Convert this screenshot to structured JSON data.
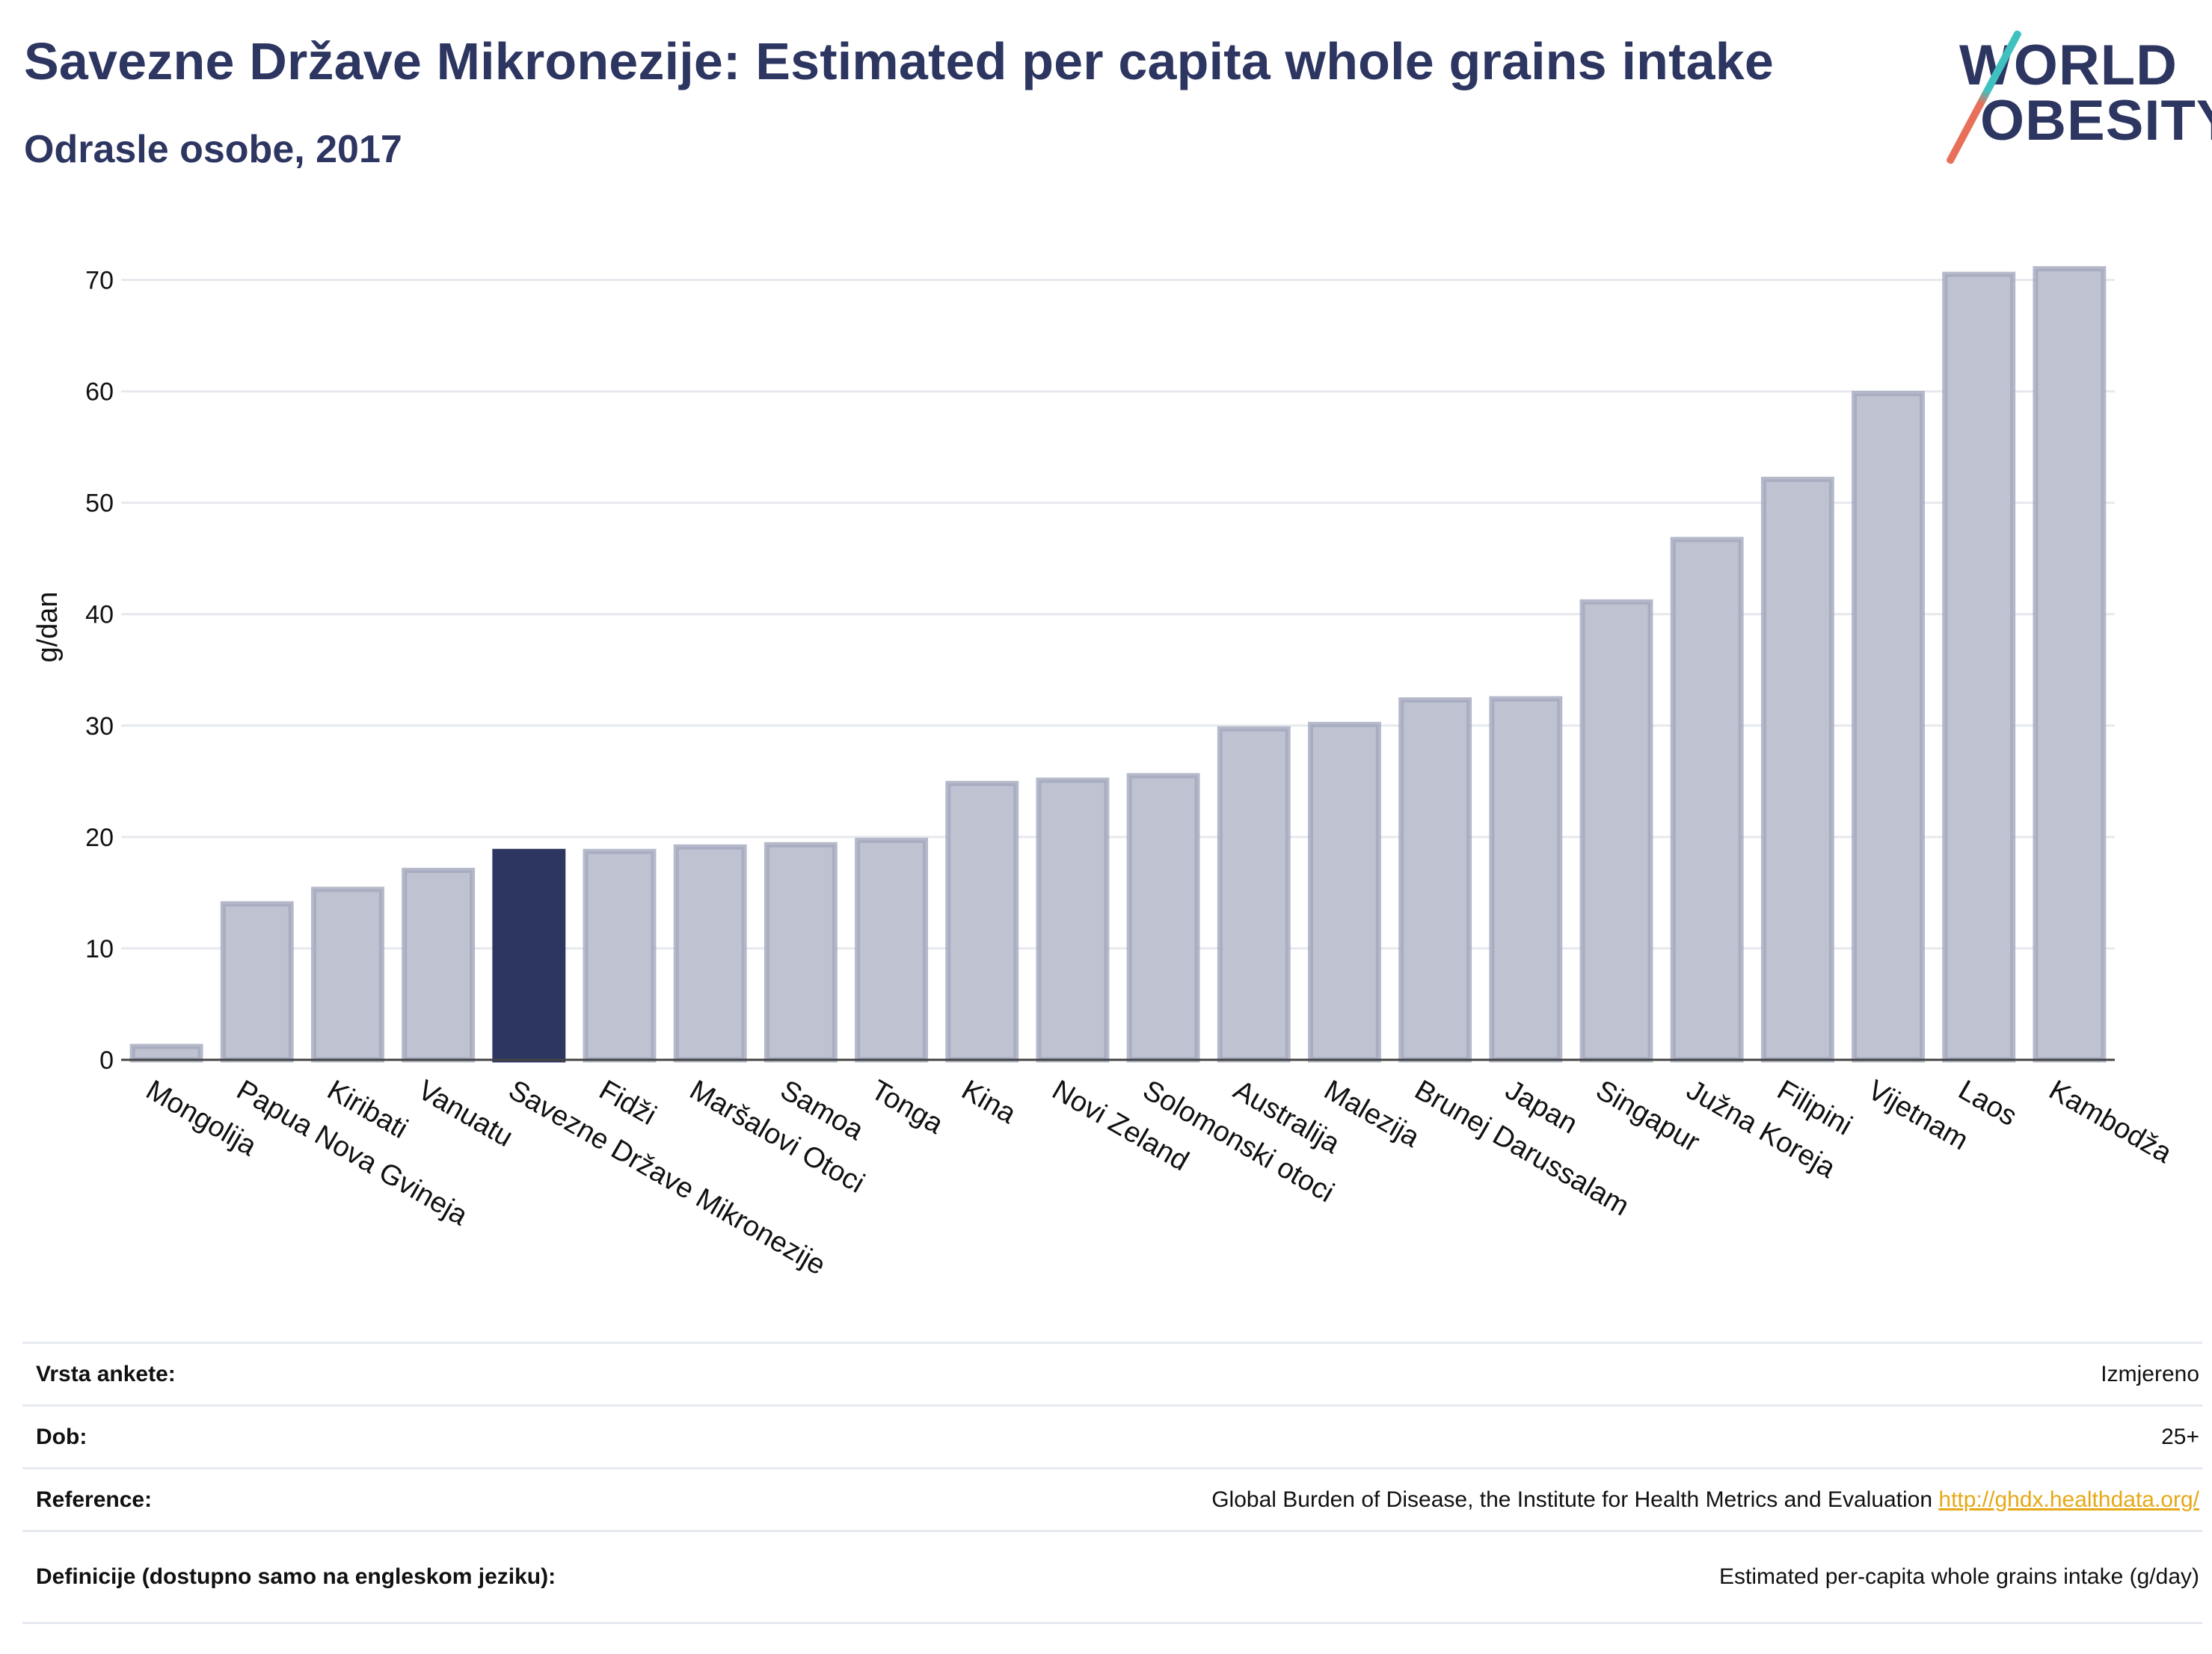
{
  "header": {
    "title": "Savezne Države Mikronezije: Estimated per capita whole grains intake",
    "subtitle": "Odrasle osobe, 2017"
  },
  "logo": {
    "line1": "WORLD",
    "line2": "OBESITY"
  },
  "colors": {
    "bar": "#bfc3d1",
    "bar_border": "#a2a7bd",
    "highlight": "#2d3561",
    "grid": "#e6e9ee",
    "text": "#2d3561"
  },
  "chart_data": {
    "type": "bar",
    "title": "Savezne Države Mikronezije: Estimated per capita whole grains intake",
    "subtitle": "Odrasle osobe, 2017",
    "ylabel": "g/dan",
    "xlabel": "",
    "ylim": [
      0,
      75
    ],
    "yticks": [
      0,
      10,
      20,
      30,
      40,
      50,
      60,
      70
    ],
    "grid": true,
    "highlight": "Savezne Države Mikronezije",
    "categories": [
      "Mongolija",
      "Papua Nova Gvineja",
      "Kiribati",
      "Vanuatu",
      "Savezne Države Mikronezije",
      "Fidži",
      "Maršalovi Otoci",
      "Samoa",
      "Tonga",
      "Kina",
      "Novi Zeland",
      "Solomonski otoci",
      "Australija",
      "Malezija",
      "Brunej Darussalam",
      "Japan",
      "Singapur",
      "Južna Koreja",
      "Filipini",
      "Vijetnam",
      "Laos",
      "Kambodža"
    ],
    "values": [
      1.2,
      14.0,
      15.3,
      17.0,
      18.7,
      18.7,
      19.1,
      19.3,
      19.7,
      24.8,
      25.1,
      25.5,
      29.7,
      30.1,
      32.3,
      32.4,
      41.1,
      46.7,
      52.1,
      59.8,
      70.5,
      71.0
    ]
  },
  "meta": [
    {
      "key": "Vrsta ankete:",
      "value": "Izmjereno",
      "link": ""
    },
    {
      "key": "Dob:",
      "value": "25+",
      "link": ""
    },
    {
      "key": "Reference:",
      "value": "Global Burden of Disease, the Institute for Health Metrics and Evaluation",
      "link": "http://ghdx.healthdata.org/"
    },
    {
      "key": "Definicije (dostupno samo na engleskom jeziku):",
      "value": "Estimated per-capita whole grains intake (g/day)",
      "link": ""
    }
  ]
}
